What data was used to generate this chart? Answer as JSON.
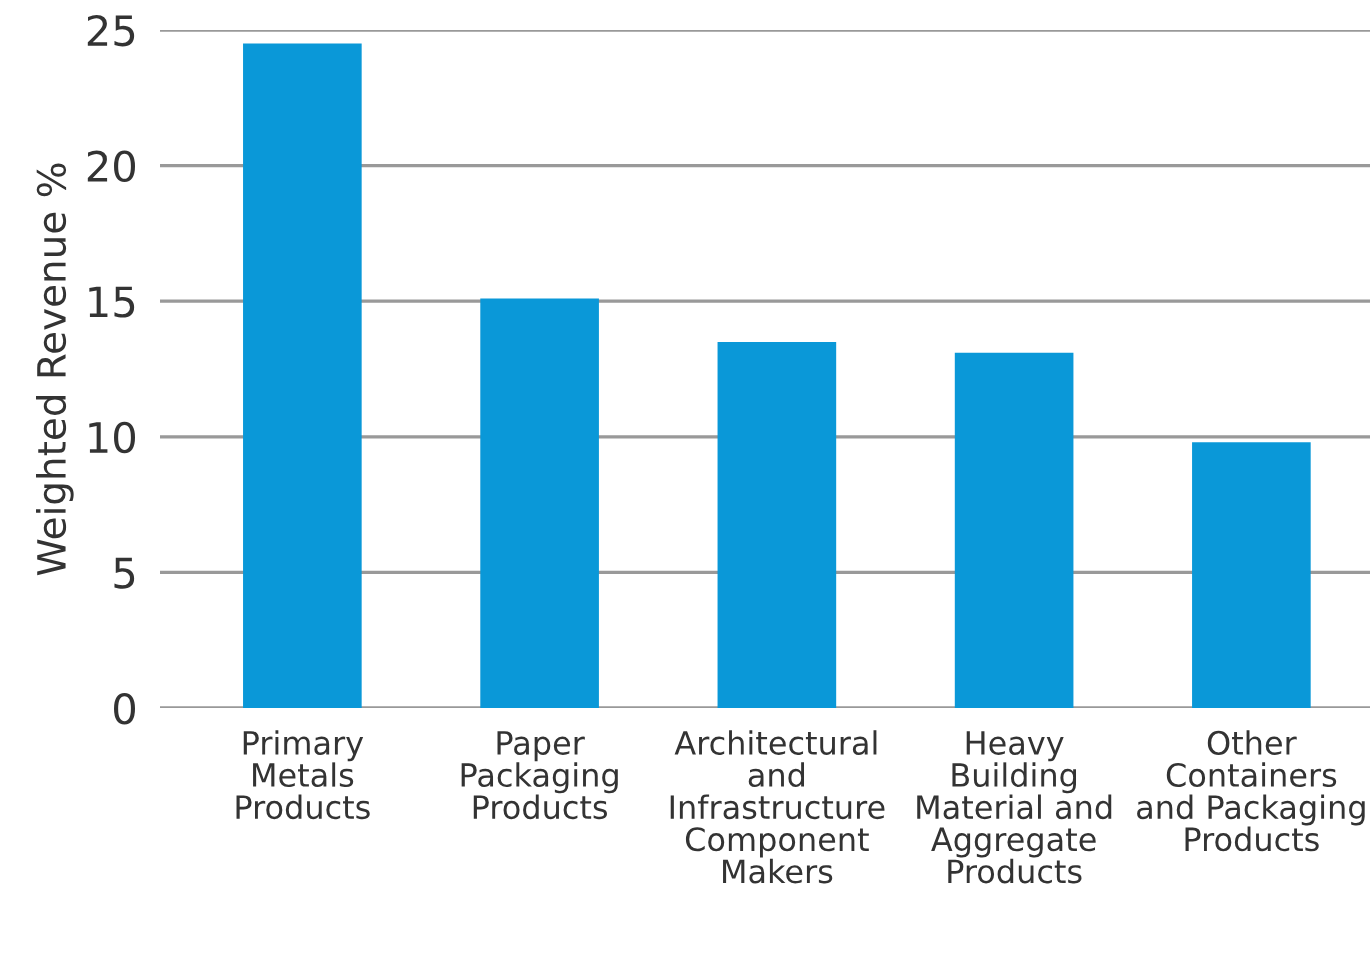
{
  "chart_data": {
    "type": "bar",
    "ylabel": "Weighted Revenue %",
    "categories": [
      "Primary\nMetals\nProducts",
      "Paper\nPackaging\nProducts",
      "Architectural\nand\nInfrastructure\nComponent\nMakers",
      "Heavy\nBuilding\nMaterial and\nAggregate\nProducts",
      "Other\nContainers\nand Packaging\nProducts"
    ],
    "values": [
      24.5,
      15.1,
      13.5,
      13.1,
      9.8
    ],
    "color": "#0a98d8",
    "ylim": [
      0,
      25
    ],
    "yticks": [
      0,
      5,
      10,
      15,
      20,
      25
    ],
    "grid": "y"
  }
}
